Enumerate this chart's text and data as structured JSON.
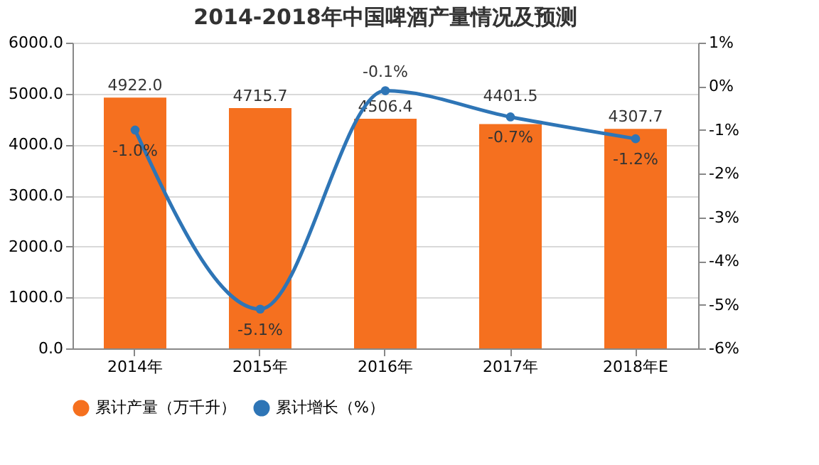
{
  "chart_data": {
    "type": "bar",
    "title": "2014-2018年中国啤酒产量情况及预测",
    "categories": [
      "2014年",
      "2015年",
      "2016年",
      "2017年",
      "2018年E"
    ],
    "series": [
      {
        "name": "累计产量（万千升）",
        "color": "#f5701f",
        "values": [
          4922.0,
          4715.7,
          4506.4,
          4401.5,
          4307.7
        ],
        "value_labels": [
          "4922.0",
          "4715.7",
          "4506.4",
          "4401.5",
          "4307.7"
        ]
      },
      {
        "name": "累计增长（%）",
        "type": "line",
        "axis": "y2",
        "color": "#2e75b6",
        "marker": "circle",
        "values": [
          -1.0,
          -5.1,
          -0.1,
          -0.7,
          -1.2
        ],
        "value_labels": [
          "-1.0%",
          "-5.1%",
          "-0.1%",
          "-0.7%",
          "-1.2%"
        ]
      }
    ],
    "ylim": [
      0,
      6000
    ],
    "yticks": [
      {
        "value": 0,
        "label": "0.0"
      },
      {
        "value": 1000,
        "label": "1000.0"
      },
      {
        "value": 2000,
        "label": "2000.0"
      },
      {
        "value": 3000,
        "label": "3000.0"
      },
      {
        "value": 4000,
        "label": "4000.0"
      },
      {
        "value": 5000,
        "label": "5000.0"
      },
      {
        "value": 6000,
        "label": "6000.0"
      }
    ],
    "y2lim": [
      -6,
      1
    ],
    "y2ticks": [
      {
        "value": -6,
        "label": "-6%"
      },
      {
        "value": -5,
        "label": "-5%"
      },
      {
        "value": -4,
        "label": "-4%"
      },
      {
        "value": -3,
        "label": "-3%"
      },
      {
        "value": -2,
        "label": "-2%"
      },
      {
        "value": -1,
        "label": "-1%"
      },
      {
        "value": 0,
        "label": "0%"
      },
      {
        "value": 1,
        "label": "1%"
      }
    ],
    "grid": "y",
    "legend": "bottom"
  }
}
